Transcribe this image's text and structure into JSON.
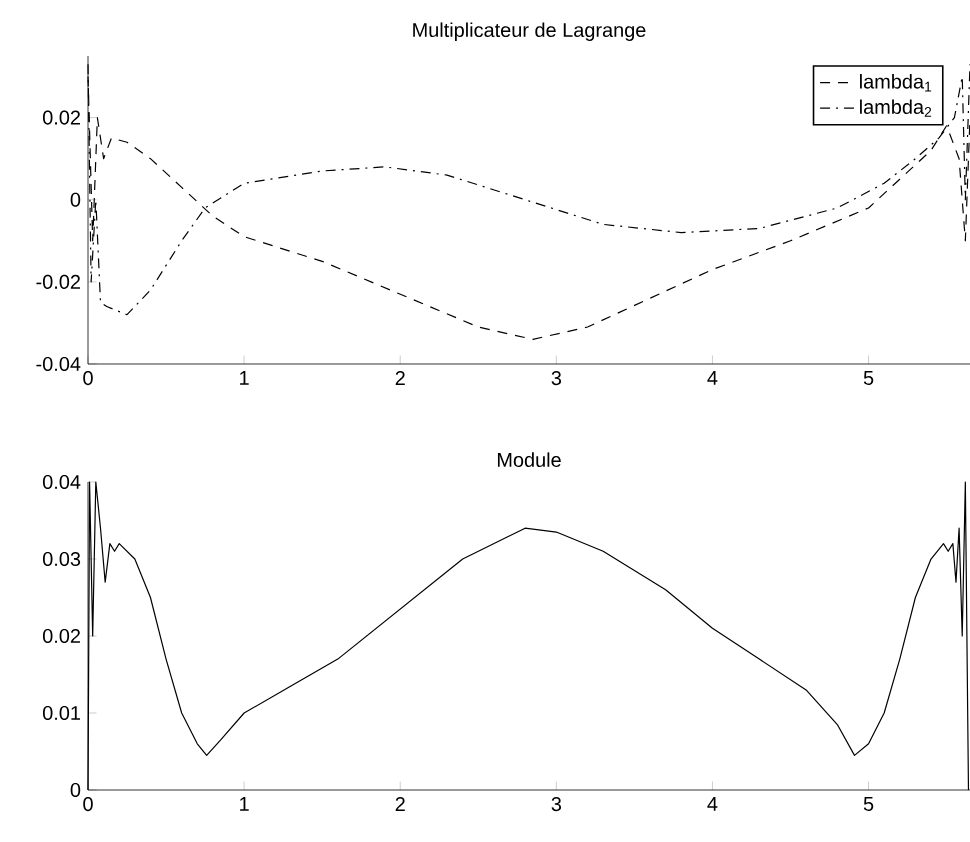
{
  "chart_data": [
    {
      "type": "line",
      "title": "Multiplicateur de Lagrange",
      "xlim": [
        0,
        5.65
      ],
      "ylim": [
        -0.04,
        0.035
      ],
      "xticks": [
        0,
        1,
        2,
        3,
        4,
        5
      ],
      "yticks": [
        -0.04,
        -0.02,
        0,
        0.02
      ],
      "legend": "top right",
      "grid": false,
      "series": [
        {
          "name": "lambda$_{1}$",
          "color": "#000000",
          "line_style": "dashed",
          "x": [
            0,
            0.03,
            0.06,
            0.1,
            0.15,
            0.25,
            0.4,
            0.6,
            0.8,
            1,
            1.5,
            2,
            2.5,
            2.85,
            3.2,
            3.6,
            4,
            4.5,
            5,
            5.2,
            5.4,
            5.5,
            5.58,
            5.62,
            5.65
          ],
          "values": [
            0.03,
            -0.01,
            0.02,
            0.01,
            0.015,
            0.014,
            0.01,
            0.003,
            -0.004,
            -0.009,
            -0.015,
            -0.023,
            -0.031,
            -0.034,
            -0.031,
            -0.024,
            -0.017,
            -0.01,
            -0.002,
            0.005,
            0.012,
            0.018,
            0.01,
            -0.01,
            0.02
          ]
        },
        {
          "name": "lambda$_{2}$",
          "color": "#000000",
          "line_style": "dashdot",
          "x": [
            0,
            0.02,
            0.05,
            0.08,
            0.12,
            0.25,
            0.4,
            0.6,
            0.75,
            1,
            1.5,
            1.9,
            2.3,
            2.8,
            3.3,
            3.8,
            4.3,
            4.8,
            5.1,
            5.3,
            5.45,
            5.55,
            5.6,
            5.62,
            5.65
          ],
          "values": [
            0.033,
            -0.02,
            0,
            -0.025,
            -0.026,
            -0.028,
            -0.022,
            -0.01,
            -0.002,
            0.004,
            0.007,
            0.008,
            0.006,
            0,
            -0.006,
            -0.008,
            -0.007,
            -0.002,
            0.004,
            0.01,
            0.015,
            0.02,
            0.03,
            0,
            0.033
          ]
        }
      ]
    },
    {
      "type": "line",
      "title": "Module",
      "xlim": [
        0,
        5.65
      ],
      "ylim": [
        0,
        0.04
      ],
      "xticks": [
        0,
        1,
        2,
        3,
        4,
        5
      ],
      "yticks": [
        0,
        0.01,
        0.02,
        0.03,
        0.04
      ],
      "grid": false,
      "series": [
        {
          "color": "#000000",
          "line_style": "solid",
          "x": [
            0,
            0.01,
            0.03,
            0.05,
            0.08,
            0.11,
            0.14,
            0.17,
            0.2,
            0.3,
            0.4,
            0.5,
            0.6,
            0.7,
            0.76,
            0.85,
            1,
            1.3,
            1.6,
            2,
            2.4,
            2.8,
            3.0,
            3.3,
            3.7,
            4.0,
            4.3,
            4.6,
            4.8,
            4.91,
            5.0,
            5.1,
            5.2,
            5.3,
            5.4,
            5.48,
            5.51,
            5.54,
            5.56,
            5.58,
            5.6,
            5.62,
            5.64
          ],
          "values": [
            0,
            0.04,
            0.02,
            0.04,
            0.034,
            0.027,
            0.032,
            0.031,
            0.032,
            0.03,
            0.025,
            0.017,
            0.01,
            0.006,
            0.0045,
            0.0065,
            0.01,
            0.0135,
            0.017,
            0.0235,
            0.03,
            0.034,
            0.0335,
            0.031,
            0.026,
            0.021,
            0.017,
            0.013,
            0.0085,
            0.0045,
            0.006,
            0.01,
            0.017,
            0.025,
            0.03,
            0.032,
            0.031,
            0.032,
            0.027,
            0.034,
            0.02,
            0.04,
            0
          ]
        }
      ]
    }
  ]
}
